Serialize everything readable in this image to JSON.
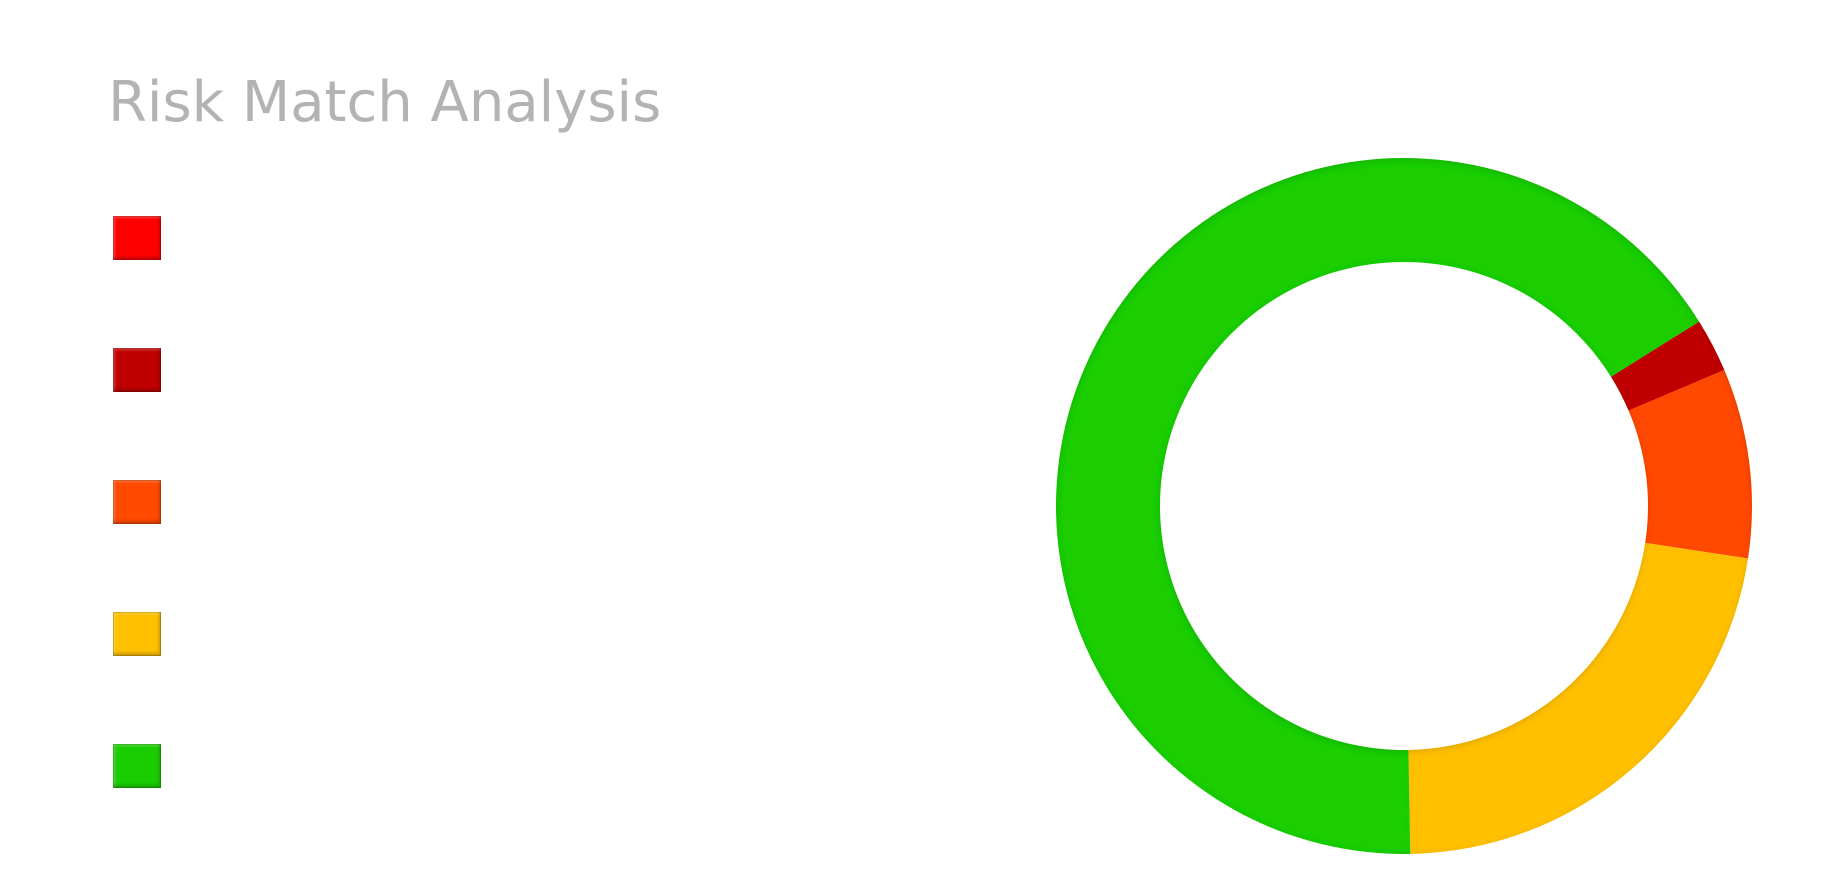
{
  "chart_data": {
    "type": "pie",
    "title": "Risk Match Analysis",
    "donut": true,
    "legend_position": "left",
    "series": [
      {
        "color": "#ff0000",
        "value": 0.0
      },
      {
        "color": "#c00000",
        "value": 2.5
      },
      {
        "color": "#ff4a00",
        "value": 8.8
      },
      {
        "color": "#ffc000",
        "value": 22.3
      },
      {
        "color": "#1acd00",
        "value": 66.4
      }
    ]
  }
}
